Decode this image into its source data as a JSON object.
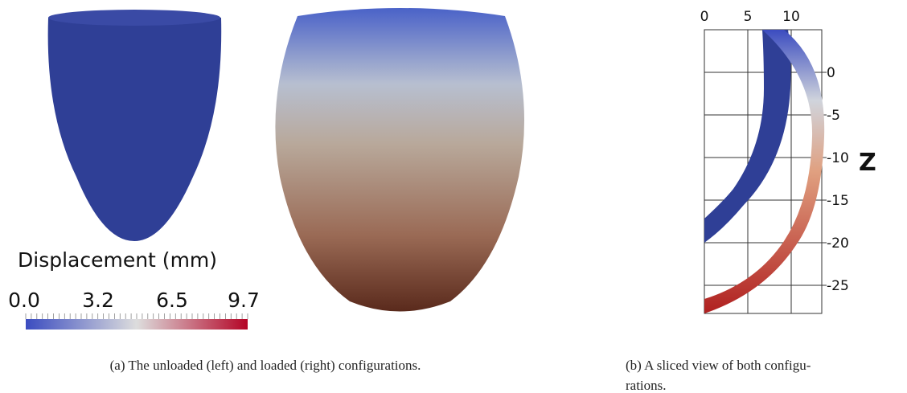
{
  "figure_a": {
    "colorbar": {
      "title": "Displacement (mm)",
      "tick_labels": [
        "0.0",
        "3.2",
        "6.5",
        "9.7"
      ]
    },
    "caption": "(a) The unloaded (left) and loaded (right) configurations."
  },
  "figure_b": {
    "xticks": [
      0,
      5,
      10
    ],
    "zticks": [
      0,
      -5,
      -10,
      -15,
      -20,
      -25
    ],
    "zlabel": "Z",
    "caption_lines": [
      "(b) A sliced view of both configu-",
      "rations."
    ]
  }
}
